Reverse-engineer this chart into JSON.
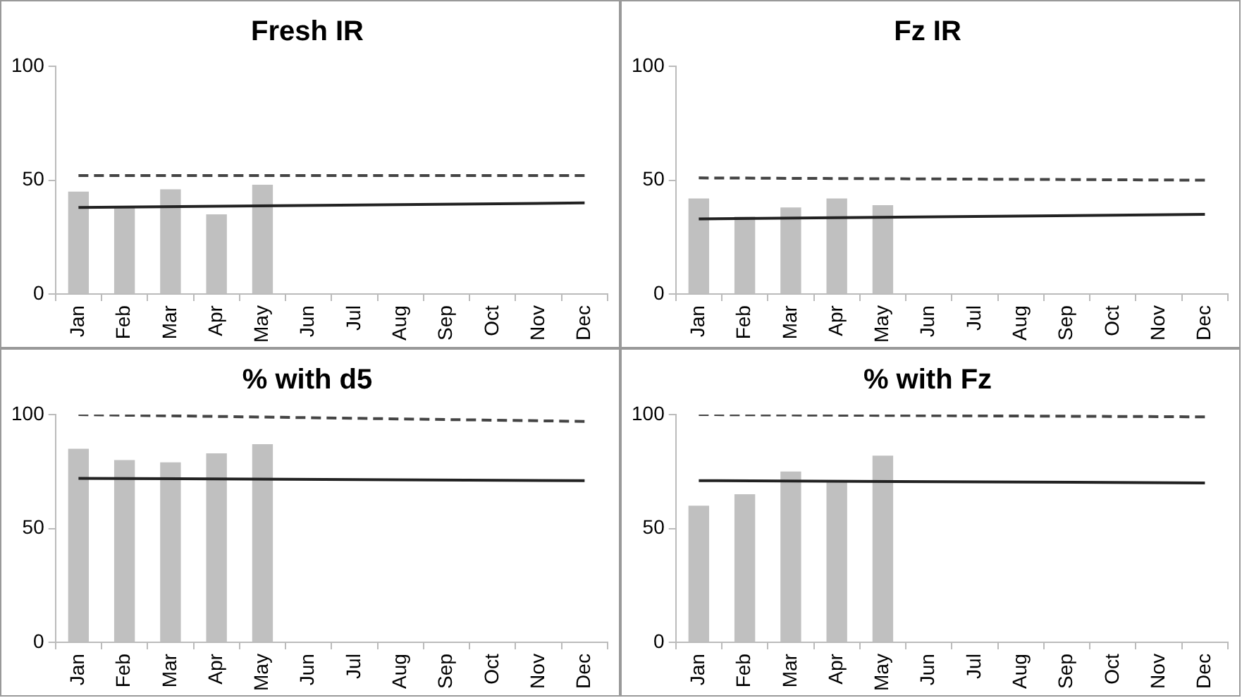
{
  "chart_data": [
    {
      "type": "bar",
      "title": "Fresh IR",
      "categories": [
        "Jan",
        "Feb",
        "Mar",
        "Apr",
        "May",
        "Jun",
        "Jul",
        "Aug",
        "Sep",
        "Oct",
        "Nov",
        "Dec"
      ],
      "ylim": [
        0,
        100
      ],
      "yticks": [
        0,
        50,
        100
      ],
      "marker": "none",
      "legend": false,
      "series": [
        {
          "color": "#c0c0c0",
          "values": [
            45,
            38,
            46,
            35,
            48,
            null,
            null,
            null,
            null,
            null,
            null,
            null
          ]
        },
        {
          "type": "line",
          "color": "#222222",
          "line_style": "solid",
          "values": [
            38,
            null,
            null,
            null,
            null,
            null,
            null,
            null,
            null,
            null,
            null,
            40
          ]
        },
        {
          "type": "line",
          "color": "#444444",
          "line_style": "dashed",
          "values": [
            52,
            null,
            null,
            null,
            null,
            null,
            null,
            null,
            null,
            null,
            null,
            52
          ]
        }
      ]
    },
    {
      "type": "bar",
      "title": "Fz IR",
      "categories": [
        "Jan",
        "Feb",
        "Mar",
        "Apr",
        "May",
        "Jun",
        "Jul",
        "Aug",
        "Sep",
        "Oct",
        "Nov",
        "Dec"
      ],
      "ylim": [
        0,
        100
      ],
      "yticks": [
        0,
        50,
        100
      ],
      "marker": "none",
      "legend": false,
      "series": [
        {
          "color": "#c0c0c0",
          "values": [
            42,
            34,
            38,
            42,
            39,
            null,
            null,
            null,
            null,
            null,
            null,
            null
          ]
        },
        {
          "type": "line",
          "color": "#222222",
          "line_style": "solid",
          "values": [
            33,
            null,
            null,
            null,
            null,
            null,
            null,
            null,
            null,
            null,
            null,
            35
          ]
        },
        {
          "type": "line",
          "color": "#444444",
          "line_style": "dashed",
          "values": [
            51,
            null,
            null,
            null,
            null,
            null,
            null,
            null,
            null,
            null,
            null,
            50
          ]
        }
      ]
    },
    {
      "type": "bar",
      "title": "% with d5",
      "categories": [
        "Jan",
        "Feb",
        "Mar",
        "Apr",
        "May",
        "Jun",
        "Jul",
        "Aug",
        "Sep",
        "Oct",
        "Nov",
        "Dec"
      ],
      "ylim": [
        0,
        100
      ],
      "yticks": [
        0,
        50,
        100
      ],
      "marker": "none",
      "legend": false,
      "series": [
        {
          "color": "#c0c0c0",
          "values": [
            85,
            80,
            79,
            83,
            87,
            null,
            null,
            null,
            null,
            null,
            null,
            null
          ]
        },
        {
          "type": "line",
          "color": "#222222",
          "line_style": "solid",
          "values": [
            72,
            null,
            null,
            null,
            null,
            null,
            null,
            null,
            null,
            null,
            null,
            71
          ]
        },
        {
          "type": "line",
          "color": "#444444",
          "line_style": "dashed",
          "values": [
            100,
            null,
            null,
            null,
            null,
            null,
            null,
            null,
            null,
            null,
            null,
            97
          ]
        }
      ]
    },
    {
      "type": "bar",
      "title": "% with Fz",
      "categories": [
        "Jan",
        "Feb",
        "Mar",
        "Apr",
        "May",
        "Jun",
        "Jul",
        "Aug",
        "Sep",
        "Oct",
        "Nov",
        "Dec"
      ],
      "ylim": [
        0,
        100
      ],
      "yticks": [
        0,
        50,
        100
      ],
      "marker": "none",
      "legend": false,
      "series": [
        {
          "color": "#c0c0c0",
          "values": [
            60,
            65,
            75,
            71,
            82,
            null,
            null,
            null,
            null,
            null,
            null,
            null
          ]
        },
        {
          "type": "line",
          "color": "#222222",
          "line_style": "solid",
          "values": [
            71,
            null,
            null,
            null,
            null,
            null,
            null,
            null,
            null,
            null,
            null,
            70
          ]
        },
        {
          "type": "line",
          "color": "#444444",
          "line_style": "dashed",
          "values": [
            100,
            null,
            null,
            null,
            null,
            null,
            null,
            null,
            null,
            null,
            null,
            99
          ]
        }
      ]
    }
  ]
}
